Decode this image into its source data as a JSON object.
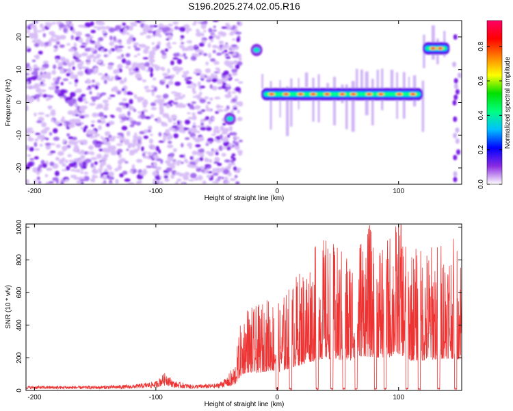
{
  "figure_title": "S196.2025.274.02.05.R16",
  "chart_data": [
    {
      "type": "heatmap",
      "title": "S196.2025.274.02.05.R16",
      "xlabel": "Height of straight line (km)",
      "ylabel": "Frequency (Hz)",
      "xlim": [
        -207,
        152
      ],
      "ylim": [
        -25,
        25
      ],
      "xticks": [
        -200,
        -100,
        0,
        100
      ],
      "yticks": [
        -20,
        -10,
        0,
        10,
        20
      ],
      "colorbar": {
        "label": "Normalized spectral amplitude",
        "range": [
          0.0,
          0.95
        ],
        "ticks": [
          0.0,
          0.2,
          0.4,
          0.6,
          0.8
        ],
        "colormap": [
          "#ffffff",
          "#8a2be2",
          "#0000ff",
          "#00bfff",
          "#00ff80",
          "#00e000",
          "#ffff00",
          "#ff8000",
          "#ff0000",
          "#ff0066"
        ]
      },
      "features": [
        {
          "name": "noise",
          "x_range": [
            -207,
            -30
          ],
          "freq_range": [
            -25,
            25
          ],
          "level": 0.1
        },
        {
          "name": "burst",
          "x_range": [
            -20,
            -14
          ],
          "freq_center": 16,
          "level": 0.45
        },
        {
          "name": "burst",
          "x_range": [
            -42,
            -36
          ],
          "freq_center": -5,
          "level": 0.35
        },
        {
          "name": "band",
          "x_range": [
            -13,
            120
          ],
          "freq_center": 2.5,
          "level": 0.9
        },
        {
          "name": "band",
          "x_range": [
            120,
            142
          ],
          "freq_center": 16.5,
          "level": 0.85
        }
      ]
    },
    {
      "type": "line",
      "title": "",
      "xlabel": "Height of straight line (km)",
      "ylabel": "SNR (10 * v/v)",
      "xlim": [
        -207,
        152
      ],
      "ylim": [
        0,
        1020
      ],
      "xticks": [
        -200,
        -100,
        0,
        100
      ],
      "yticks": [
        0,
        200,
        400,
        600,
        800,
        1000
      ],
      "series": [
        {
          "name": "SNR",
          "color": "#ee3333",
          "x": [
            -207,
            -180,
            -150,
            -120,
            -100,
            -92,
            -85,
            -70,
            -50,
            -40,
            -35,
            -30,
            -25,
            -20,
            -15,
            -10,
            -5,
            0,
            10,
            20,
            30,
            40,
            50,
            60,
            70,
            80,
            90,
            100,
            110,
            120,
            130,
            140,
            152
          ],
          "y": [
            20,
            20,
            20,
            25,
            40,
            80,
            40,
            25,
            30,
            60,
            100,
            250,
            320,
            300,
            310,
            330,
            350,
            310,
            380,
            450,
            520,
            560,
            520,
            520,
            600,
            580,
            560,
            640,
            520,
            520,
            540,
            560,
            540
          ]
        }
      ],
      "peaks": [
        {
          "x": 76,
          "y": 1010
        },
        {
          "x": 102,
          "y": 1015
        }
      ]
    }
  ]
}
